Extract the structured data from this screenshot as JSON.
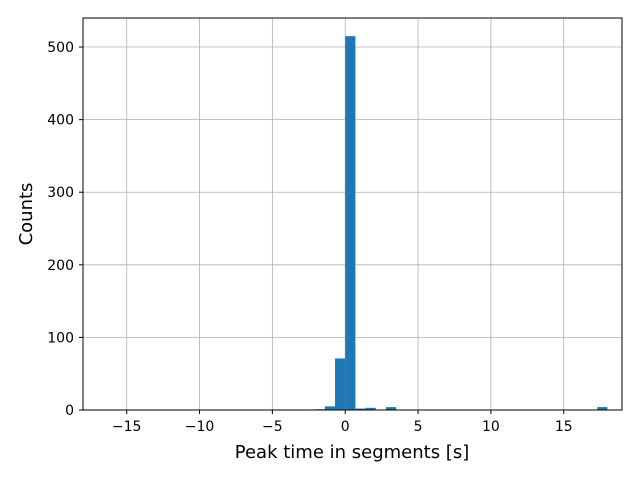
{
  "chart_data": {
    "type": "bar",
    "title": "",
    "xlabel": "Peak time in segments [s]",
    "ylabel": "Counts",
    "xlim": [
      -18.0,
      19.0
    ],
    "ylim": [
      0,
      540
    ],
    "xticks": [
      -15,
      -10,
      -5,
      0,
      5,
      10,
      15
    ],
    "xtick_labels": [
      "−15",
      "−10",
      "−5",
      "0",
      "5",
      "10",
      "15"
    ],
    "yticks": [
      0,
      100,
      200,
      300,
      400,
      500
    ],
    "ytick_labels": [
      "0",
      "100",
      "200",
      "300",
      "400",
      "500"
    ],
    "grid": true,
    "color": "#1f77b4",
    "bin_width": 0.7,
    "bins": [
      {
        "x": -2.1,
        "value": 1
      },
      {
        "x": -1.4,
        "value": 5
      },
      {
        "x": -0.7,
        "value": 71
      },
      {
        "x": 0.0,
        "value": 515
      },
      {
        "x": 0.7,
        "value": 2
      },
      {
        "x": 1.4,
        "value": 3
      },
      {
        "x": 2.8,
        "value": 4
      },
      {
        "x": 17.3,
        "value": 4
      }
    ]
  }
}
